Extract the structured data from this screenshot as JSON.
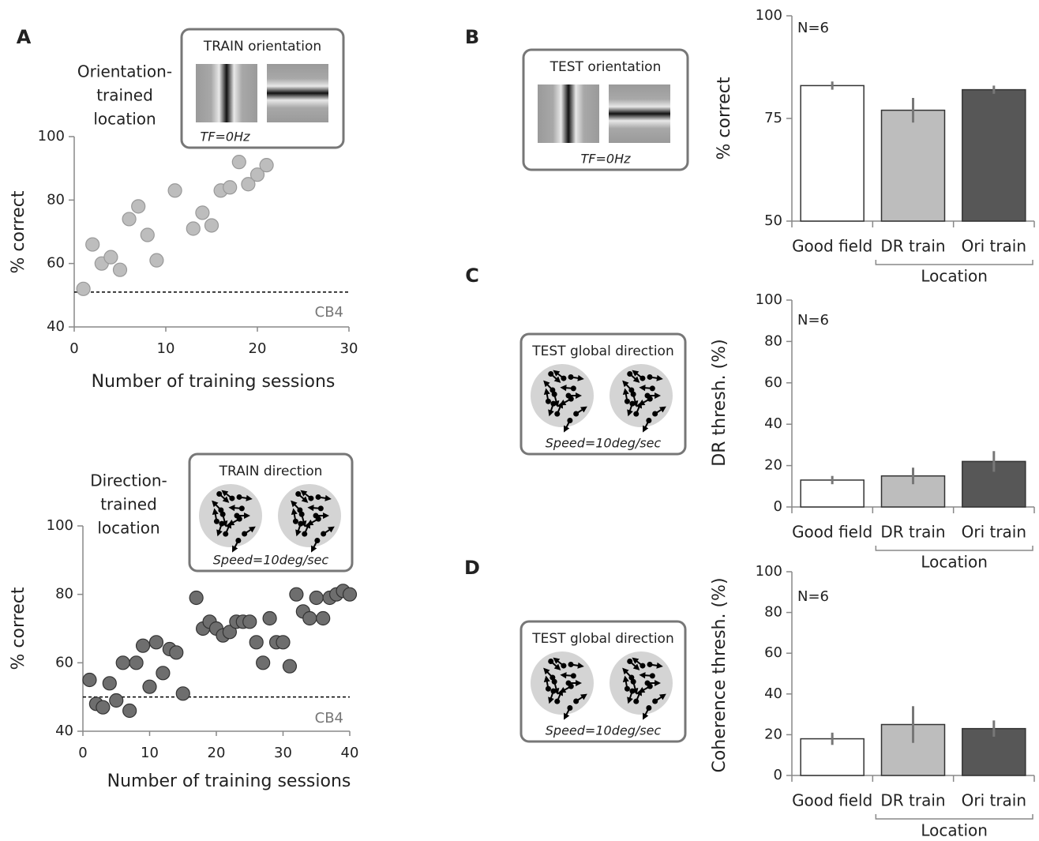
{
  "chart_data": [
    {
      "type": "scatter",
      "panel": "A",
      "annotation": [
        "Orientation-",
        "trained",
        "location"
      ],
      "inset_title": "TRAIN orientation",
      "inset_caption": "TF=0Hz",
      "xlabel": "Number of training sessions",
      "ylabel": "% correct",
      "x": [
        1,
        2,
        3,
        4,
        5,
        6,
        7,
        8,
        9,
        11,
        13,
        14,
        15,
        16,
        17,
        18,
        19,
        20,
        21
      ],
      "values": [
        52,
        66,
        60,
        62,
        58,
        74,
        78,
        69,
        61,
        83,
        71,
        76,
        72,
        83,
        84,
        92,
        85,
        88,
        91
      ],
      "color": "#bdbdbd",
      "xlim": [
        0,
        30
      ],
      "xticks": [
        0,
        10,
        20,
        30
      ],
      "ylim": [
        40,
        100
      ],
      "yticks": [
        40,
        60,
        80,
        100
      ],
      "baseline": 51,
      "baseline_label": "CB4"
    },
    {
      "type": "scatter",
      "annotation": [
        "Direction-",
        "trained",
        "location"
      ],
      "inset_title": "TRAIN direction",
      "inset_caption": "Speed=10deg/sec",
      "xlabel": "Number of training sessions",
      "ylabel": "% correct",
      "x": [
        1,
        2,
        3,
        4,
        5,
        6,
        7,
        8,
        9,
        10,
        11,
        12,
        13,
        14,
        15,
        17,
        18,
        19,
        20,
        21,
        22,
        23,
        24,
        25,
        26,
        27,
        28,
        29,
        30,
        31,
        32,
        33,
        34,
        35,
        36,
        37,
        38,
        39,
        40
      ],
      "values": [
        55,
        48,
        47,
        54,
        49,
        60,
        46,
        60,
        65,
        53,
        66,
        57,
        64,
        63,
        51,
        79,
        70,
        72,
        70,
        68,
        69,
        72,
        72,
        72,
        66,
        60,
        73,
        66,
        66,
        59,
        80,
        75,
        73,
        79,
        73,
        79,
        80,
        81,
        80
      ],
      "color": "#6e6e6e",
      "xlim": [
        0,
        40
      ],
      "xticks": [
        0,
        10,
        20,
        30,
        40
      ],
      "ylim": [
        40,
        100
      ],
      "yticks": [
        40,
        60,
        80,
        100
      ],
      "baseline": 50,
      "baseline_label": "CB4"
    },
    {
      "type": "bar",
      "panel": "B",
      "inset_title": "TEST orientation",
      "inset_caption": "TF=0Hz",
      "note": "N=6",
      "ylabel": "% correct",
      "group_label": "Location",
      "categories": [
        "Good field",
        "DR train",
        "Ori train"
      ],
      "values": [
        83,
        77,
        82
      ],
      "errors": [
        1,
        3,
        1
      ],
      "colors": [
        "#ffffff",
        "#bdbdbd",
        "#575757"
      ],
      "ylim": [
        50,
        100
      ],
      "yticks": [
        50,
        75,
        100
      ]
    },
    {
      "type": "bar",
      "panel": "C",
      "inset_title": "TEST global direction",
      "inset_caption": "Speed=10deg/sec",
      "note": "N=6",
      "ylabel": "DR thresh. (%)",
      "group_label": "Location",
      "categories": [
        "Good field",
        "DR train",
        "Ori train"
      ],
      "values": [
        13,
        15,
        22
      ],
      "errors": [
        2,
        4,
        5
      ],
      "colors": [
        "#ffffff",
        "#bdbdbd",
        "#575757"
      ],
      "ylim": [
        0,
        100
      ],
      "yticks": [
        0,
        20,
        40,
        60,
        80,
        100
      ]
    },
    {
      "type": "bar",
      "panel": "D",
      "inset_title": "TEST global direction",
      "inset_caption": "Speed=10deg/sec",
      "note": "N=6",
      "ylabel": "Coherence thresh. (%)",
      "group_label": "Location",
      "categories": [
        "Good field",
        "DR train",
        "Ori train"
      ],
      "values": [
        18,
        25,
        23
      ],
      "errors": [
        3,
        9,
        4
      ],
      "colors": [
        "#ffffff",
        "#bdbdbd",
        "#575757"
      ],
      "ylim": [
        0,
        100
      ],
      "yticks": [
        0,
        20,
        40,
        60,
        80,
        100
      ]
    }
  ]
}
